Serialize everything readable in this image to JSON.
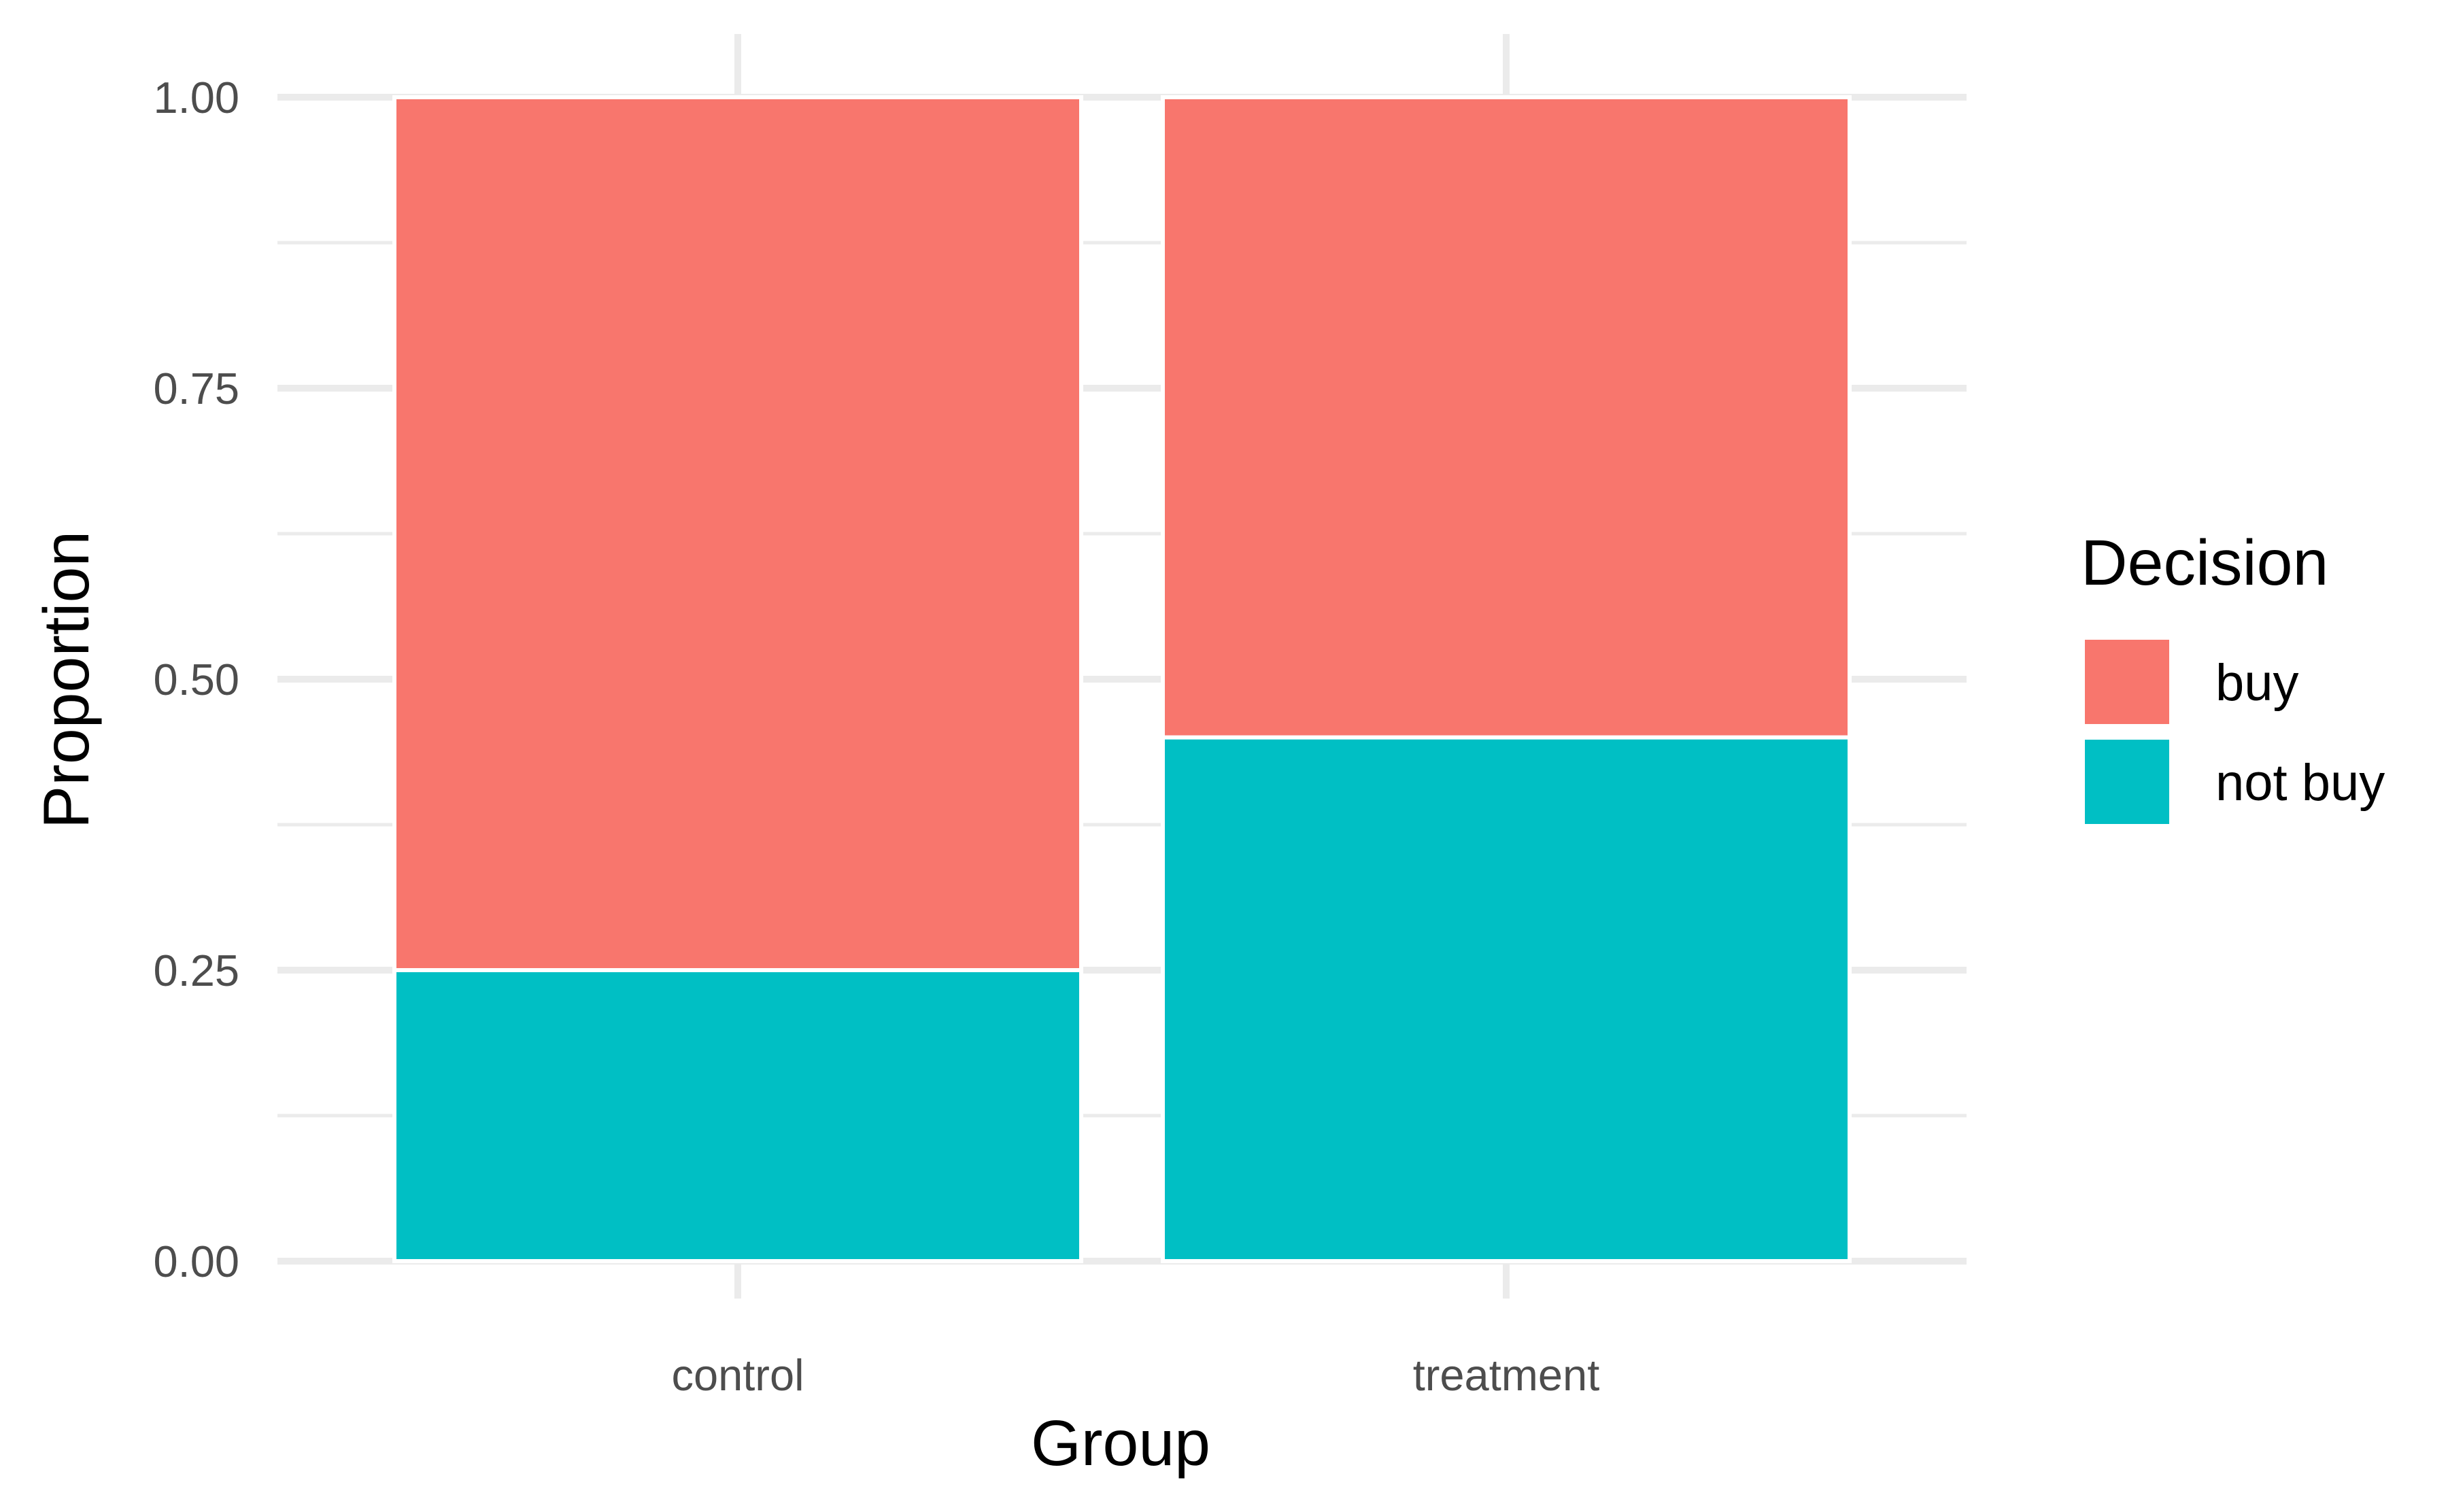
{
  "chart_data": {
    "type": "bar",
    "stacked": true,
    "categories": [
      "control",
      "treatment"
    ],
    "series": [
      {
        "name": "buy",
        "values": [
          0.75,
          0.55
        ],
        "color": "#F8766D"
      },
      {
        "name": "not buy",
        "values": [
          0.25,
          0.45
        ],
        "color": "#00BFC4"
      }
    ],
    "xlabel": "Group",
    "ylabel": "Proportion",
    "ylim": [
      0,
      1
    ],
    "yticks": [
      0,
      0.25,
      0.5,
      0.75,
      1
    ],
    "ytick_labels": [
      "0.00",
      "0.25",
      "0.50",
      "0.75",
      "1.00"
    ],
    "grid": true,
    "legend": {
      "title": "Decision",
      "placement": "right"
    }
  }
}
